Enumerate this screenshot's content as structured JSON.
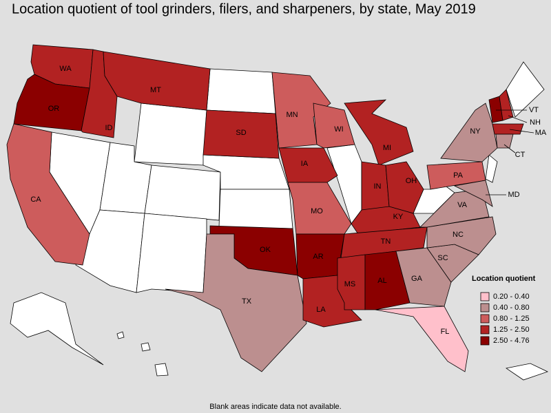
{
  "title": "Location quotient of tool grinders, filers, and sharpeners, by state, May 2019",
  "legend": {
    "title": "Location quotient",
    "items": [
      {
        "label": "0.20 - 0.40",
        "color": "#ffc0cb"
      },
      {
        "label": "0.40 - 0.80",
        "color": "#bc8f8f"
      },
      {
        "label": "0.80 - 1.25",
        "color": "#cd5c5c"
      },
      {
        "label": "1.25 - 2.50",
        "color": "#b22222"
      },
      {
        "label": "2.50 - 4.76",
        "color": "#8b0000"
      }
    ]
  },
  "states": [
    {
      "label": "WA",
      "color": "#b22222"
    },
    {
      "label": "OR",
      "color": "#8b0000"
    },
    {
      "label": "CA",
      "color": "#cd5c5c"
    },
    {
      "label": "ID",
      "color": "#b22222"
    },
    {
      "label": "MT",
      "color": "#b22222"
    },
    {
      "label": "SD",
      "color": "#b22222"
    },
    {
      "label": "MN",
      "color": "#cd5c5c"
    },
    {
      "label": "WI",
      "color": "#cd5c5c"
    },
    {
      "label": "IA",
      "color": "#b22222"
    },
    {
      "label": "MO",
      "color": "#cd5c5c"
    },
    {
      "label": "MI",
      "color": "#b22222"
    },
    {
      "label": "IN",
      "color": "#b22222"
    },
    {
      "label": "OH",
      "color": "#b22222"
    },
    {
      "label": "KY",
      "color": "#b22222"
    },
    {
      "label": "TN",
      "color": "#b22222"
    },
    {
      "label": "OK",
      "color": "#8b0000"
    },
    {
      "label": "AR",
      "color": "#8b0000"
    },
    {
      "label": "TX",
      "color": "#bc8f8f"
    },
    {
      "label": "LA",
      "color": "#b22222"
    },
    {
      "label": "MS",
      "color": "#b22222"
    },
    {
      "label": "AL",
      "color": "#8b0000"
    },
    {
      "label": "GA",
      "color": "#bc8f8f"
    },
    {
      "label": "SC",
      "color": "#bc8f8f"
    },
    {
      "label": "NC",
      "color": "#bc8f8f"
    },
    {
      "label": "VA",
      "color": "#bc8f8f"
    },
    {
      "label": "PA",
      "color": "#cd5c5c"
    },
    {
      "label": "NY",
      "color": "#bc8f8f"
    },
    {
      "label": "VT",
      "color": "#8b0000"
    },
    {
      "label": "NH",
      "color": "#b22222"
    },
    {
      "label": "MA",
      "color": "#b22222"
    },
    {
      "label": "CT",
      "color": "#bc8f8f"
    },
    {
      "label": "MD",
      "color": "#bc8f8f"
    },
    {
      "label": "FL",
      "color": "#ffc0cb"
    }
  ],
  "footnote": "Blank areas indicate data not available."
}
